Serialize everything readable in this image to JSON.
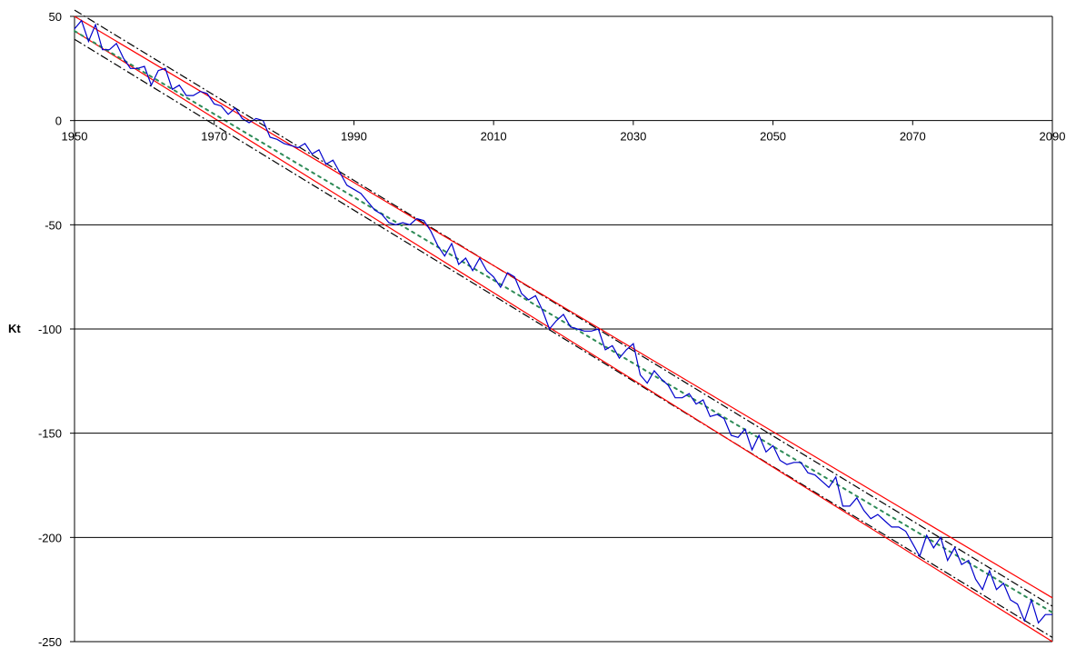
{
  "chart_data": {
    "type": "line",
    "title": "",
    "xlabel": "",
    "ylabel": "Kt",
    "xlim": [
      1950,
      2090
    ],
    "ylim": [
      -250,
      50
    ],
    "xticks": [
      1950,
      1970,
      1990,
      2010,
      2030,
      2050,
      2070,
      2090
    ],
    "yticks": [
      50,
      0,
      -50,
      -100,
      -150,
      -200,
      -250
    ],
    "grid": "horizontal",
    "legend": "none",
    "series": [
      {
        "id": "kt",
        "style": "solid",
        "color": "#0000cc",
        "x": [
          1950,
          1951,
          1952,
          1953,
          1954,
          1955,
          1956,
          1957,
          1958,
          1959,
          1960,
          1961,
          1962,
          1963,
          1964,
          1965,
          1966,
          1967,
          1968,
          1969,
          1970,
          1971,
          1972,
          1973,
          1974,
          1975,
          1976,
          1977,
          1978,
          1979,
          1980,
          1981,
          1982,
          1983,
          1984,
          1985,
          1986,
          1987,
          1988,
          1989,
          1990,
          1991,
          1992,
          1993,
          1994,
          1995,
          1996,
          1997,
          1998,
          1999,
          2000,
          2001,
          2002,
          2003,
          2004,
          2005,
          2006,
          2007,
          2008,
          2009,
          2010,
          2011,
          2012,
          2013,
          2014,
          2015,
          2016,
          2017,
          2018,
          2019,
          2020,
          2021,
          2022,
          2023,
          2024,
          2025,
          2026,
          2027,
          2028,
          2029,
          2030,
          2031,
          2032,
          2033,
          2034,
          2035,
          2036,
          2037,
          2038,
          2039,
          2040,
          2041,
          2042,
          2043,
          2044,
          2045,
          2046,
          2047,
          2048,
          2049,
          2050,
          2051,
          2052,
          2053,
          2054,
          2055,
          2056,
          2057,
          2058,
          2059,
          2060,
          2061,
          2062,
          2063,
          2064,
          2065,
          2066,
          2067,
          2068,
          2069,
          2070,
          2071,
          2072,
          2073,
          2074,
          2075,
          2076,
          2077,
          2078,
          2079,
          2080,
          2081,
          2082,
          2083,
          2084,
          2085,
          2086,
          2087,
          2088,
          2089,
          2090
        ],
        "y": [
          44,
          48,
          38,
          46,
          34,
          34,
          37,
          30,
          25,
          25,
          26,
          17,
          24,
          25,
          15,
          17,
          12,
          12,
          14,
          13,
          8,
          7,
          3,
          6,
          1,
          -1,
          1,
          0,
          -8,
          -9,
          -11,
          -12,
          -13,
          -11,
          -16,
          -14,
          -21,
          -19,
          -25,
          -31,
          -33,
          -35,
          -39,
          -43,
          -45,
          -49,
          -50,
          -49,
          -50,
          -47,
          -48,
          -53,
          -60,
          -65,
          -59,
          -69,
          -66,
          -72,
          -66,
          -72,
          -75,
          -80,
          -73,
          -75,
          -83,
          -86,
          -84,
          -91,
          -100,
          -96,
          -93,
          -99,
          -100,
          -101,
          -101,
          -100,
          -110,
          -108,
          -114,
          -110,
          -107,
          -122,
          -126,
          -120,
          -124,
          -127,
          -133,
          -133,
          -131,
          -136,
          -134,
          -142,
          -141,
          -143,
          -151,
          -152,
          -148,
          -158,
          -151,
          -159,
          -156,
          -163,
          -165,
          -164,
          -164,
          -169,
          -170,
          -173,
          -176,
          -171,
          -185,
          -185,
          -181,
          -187,
          -191,
          -189,
          -192,
          -195,
          -195,
          -197,
          -203,
          -209,
          -199,
          -205,
          -200,
          -211,
          -205,
          -213,
          -211,
          -220,
          -225,
          -216,
          -225,
          -222,
          -230,
          -232,
          -240,
          -230,
          -241,
          -237,
          -237
        ]
      },
      {
        "id": "trend",
        "style": "dotted",
        "color": "#2e8b57",
        "x": [
          1950,
          2090
        ],
        "y": [
          43,
          -236
        ]
      },
      {
        "id": "inner-upper",
        "style": "solid",
        "color": "#ff0000",
        "x": [
          1950,
          2090
        ],
        "y": [
          50,
          -229
        ]
      },
      {
        "id": "inner-lower",
        "style": "solid",
        "color": "#ff0000",
        "x": [
          1950,
          2090
        ],
        "y": [
          43,
          -250
        ]
      },
      {
        "id": "outer-upper",
        "style": "dashdot",
        "color": "#000000",
        "x": [
          1950,
          2090
        ],
        "y": [
          53,
          -233
        ]
      },
      {
        "id": "outer-lower",
        "style": "dashdot",
        "color": "#000000",
        "x": [
          1950,
          2090
        ],
        "y": [
          39,
          -248
        ]
      }
    ]
  }
}
